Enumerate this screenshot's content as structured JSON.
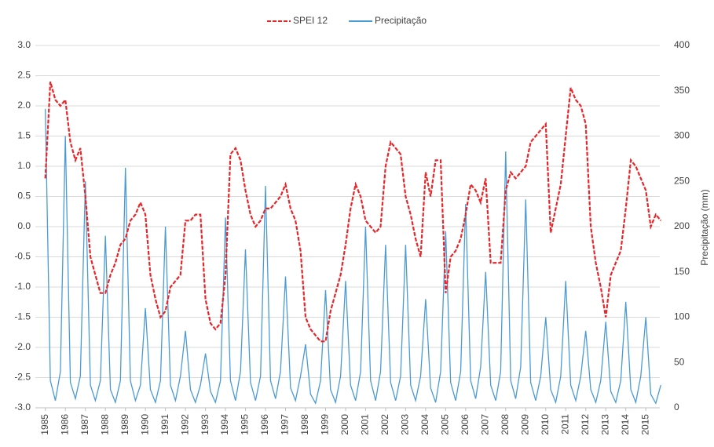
{
  "chart_data": {
    "type": "line",
    "x": [
      1985,
      1985.25,
      1985.5,
      1985.75,
      1986,
      1986.25,
      1986.5,
      1986.75,
      1987,
      1987.25,
      1987.5,
      1987.75,
      1988,
      1988.25,
      1988.5,
      1988.75,
      1989,
      1989.25,
      1989.5,
      1989.75,
      1990,
      1990.25,
      1990.5,
      1990.75,
      1991,
      1991.25,
      1991.5,
      1991.75,
      1992,
      1992.25,
      1992.5,
      1992.75,
      1993,
      1993.25,
      1993.5,
      1993.75,
      1994,
      1994.25,
      1994.5,
      1994.75,
      1995,
      1995.25,
      1995.5,
      1995.75,
      1996,
      1996.25,
      1996.5,
      1996.75,
      1997,
      1997.25,
      1997.5,
      1997.75,
      1998,
      1998.25,
      1998.5,
      1998.75,
      1999,
      1999.25,
      1999.5,
      1999.75,
      2000,
      2000.25,
      2000.5,
      2000.75,
      2001,
      2001.25,
      2001.5,
      2001.75,
      2002,
      2002.25,
      2002.5,
      2002.75,
      2003,
      2003.25,
      2003.5,
      2003.75,
      2004,
      2004.25,
      2004.5,
      2004.75,
      2005,
      2005.25,
      2005.5,
      2005.75,
      2006,
      2006.25,
      2006.5,
      2006.75,
      2007,
      2007.25,
      2007.5,
      2007.75,
      2008,
      2008.25,
      2008.5,
      2008.75,
      2009,
      2009.25,
      2009.5,
      2009.75,
      2010,
      2010.25,
      2010.5,
      2010.75,
      2011,
      2011.25,
      2011.5,
      2011.75,
      2012,
      2012.25,
      2012.5,
      2012.75,
      2013,
      2013.25,
      2013.5,
      2013.75,
      2014,
      2014.25,
      2014.5,
      2014.75,
      2015,
      2015.25,
      2015.5,
      2015.75
    ],
    "series": [
      {
        "name": "SPEI 12",
        "color": "#e8262a",
        "style": "dashed",
        "axis": "y",
        "values": [
          0.8,
          2.4,
          2.1,
          2.0,
          2.1,
          1.4,
          1.1,
          1.3,
          0.5,
          -0.5,
          -0.8,
          -1.1,
          -1.1,
          -0.8,
          -0.6,
          -0.3,
          -0.2,
          0.1,
          0.2,
          0.4,
          0.2,
          -0.8,
          -1.2,
          -1.5,
          -1.4,
          -1.0,
          -0.9,
          -0.8,
          0.1,
          0.1,
          0.2,
          0.2,
          -1.2,
          -1.6,
          -1.7,
          -1.6,
          -0.8,
          1.2,
          1.3,
          1.1,
          0.6,
          0.2,
          0.0,
          0.1,
          0.3,
          0.3,
          0.4,
          0.5,
          0.7,
          0.3,
          0.1,
          -0.4,
          -1.5,
          -1.7,
          -1.8,
          -1.9,
          -1.9,
          -1.4,
          -1.1,
          -0.8,
          -0.3,
          0.3,
          0.7,
          0.5,
          0.1,
          0.0,
          -0.1,
          0.0,
          1.0,
          1.4,
          1.3,
          1.2,
          0.5,
          0.2,
          -0.2,
          -0.5,
          0.9,
          0.5,
          1.1,
          1.1,
          -1.1,
          -0.5,
          -0.4,
          -0.2,
          0.2,
          0.7,
          0.6,
          0.4,
          0.8,
          -0.6,
          -0.6,
          -0.6,
          0.6,
          0.9,
          0.8,
          0.9,
          1.0,
          1.4,
          1.5,
          1.6,
          1.7,
          -0.1,
          0.3,
          0.7,
          1.5,
          2.3,
          2.1,
          2.0,
          1.7,
          0.0,
          -0.6,
          -1.0,
          -1.5,
          -0.8,
          -0.6,
          -0.4,
          0.3,
          1.1,
          1.0,
          0.8,
          0.6,
          0.0,
          0.2,
          0.1
        ]
      },
      {
        "name": "Precipitação",
        "color": "#4a9bd4",
        "style": "solid",
        "axis": "y2",
        "values": [
          330,
          30,
          8,
          40,
          300,
          28,
          10,
          35,
          250,
          25,
          8,
          30,
          190,
          20,
          6,
          30,
          265,
          30,
          8,
          25,
          110,
          20,
          6,
          30,
          200,
          25,
          8,
          35,
          85,
          20,
          6,
          25,
          60,
          18,
          6,
          30,
          210,
          30,
          8,
          40,
          175,
          28,
          8,
          35,
          245,
          30,
          10,
          40,
          145,
          22,
          8,
          35,
          70,
          15,
          5,
          30,
          130,
          20,
          6,
          35,
          140,
          25,
          8,
          40,
          200,
          30,
          8,
          40,
          180,
          28,
          8,
          35,
          180,
          25,
          8,
          35,
          120,
          22,
          6,
          40,
          195,
          28,
          8,
          40,
          225,
          30,
          10,
          45,
          150,
          25,
          8,
          40,
          283,
          30,
          10,
          45,
          230,
          28,
          8,
          35,
          100,
          20,
          6,
          35,
          140,
          25,
          8,
          35,
          85,
          20,
          6,
          30,
          95,
          18,
          6,
          30,
          117,
          20,
          6,
          35,
          100,
          15,
          5,
          25
        ]
      }
    ],
    "ylim": [
      -3,
      3
    ],
    "yticks": [
      {
        "value": -3,
        "label": "-3.0"
      },
      -2.5,
      {
        "value": -2,
        "label": "-2.0"
      },
      -1.5,
      {
        "value": -1,
        "label": "-1.0"
      },
      -0.5,
      {
        "value": 0,
        "label": "0.0"
      },
      0.5,
      {
        "value": 1,
        "label": "1.0"
      },
      1.5,
      {
        "value": 2,
        "label": "2.0"
      },
      2.5,
      {
        "value": 3,
        "label": "3.0"
      }
    ],
    "y2lim": [
      0,
      400
    ],
    "y2ticks": [
      0,
      50,
      100,
      150,
      200,
      250,
      300,
      350,
      400
    ],
    "y2label": "Precipitação (mm)",
    "xlim": [
      1984.5,
      2015.7
    ],
    "xticks": [
      1985,
      1986,
      1987,
      1988,
      1989,
      1990,
      1991,
      1992,
      1993,
      1994,
      1995,
      1996,
      1997,
      1998,
      1999,
      2000,
      2001,
      2002,
      2003,
      2004,
      2005,
      2006,
      2007,
      2008,
      2009,
      2010,
      2011,
      2012,
      2013,
      2014,
      2015
    ],
    "grid": true,
    "legend": "top"
  }
}
